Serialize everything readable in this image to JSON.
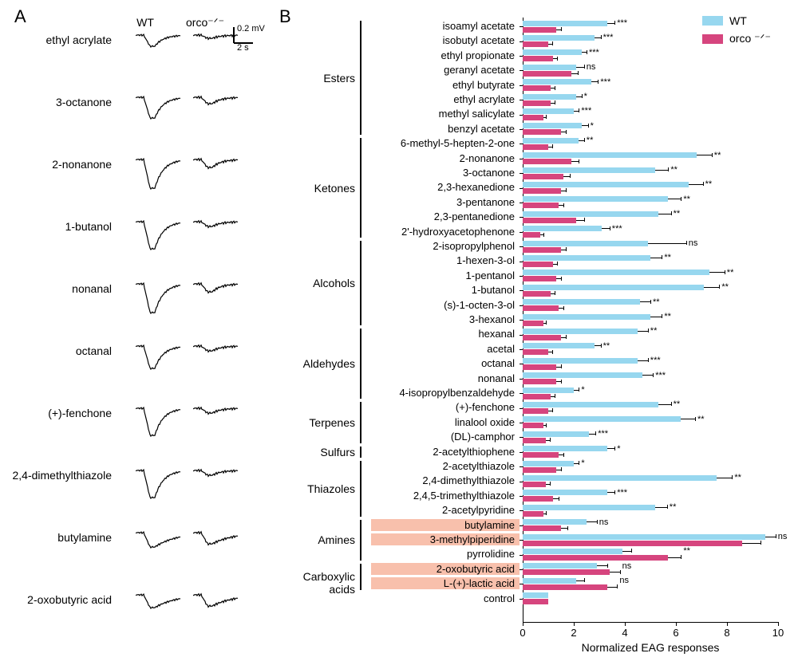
{
  "panel_labels": {
    "A": "A",
    "B": "B"
  },
  "panelA": {
    "col_headers": {
      "wt": "WT",
      "ko": "orco⁻ᐟ⁻"
    },
    "scalebar": {
      "y_label": "0.2 mV",
      "x_label": "2 s"
    },
    "traces": [
      {
        "label": "ethyl acrylate"
      },
      {
        "label": "3-octanone"
      },
      {
        "label": "2-nonanone"
      },
      {
        "label": "1-butanol"
      },
      {
        "label": "nonanal"
      },
      {
        "label": "octanal"
      },
      {
        "label": "(+)-fenchone"
      },
      {
        "label": "2,4-dimethylthiazole"
      },
      {
        "label": "butylamine"
      },
      {
        "label": "2-oxobutyric acid"
      }
    ],
    "trace_style": {
      "line_color": "#000000",
      "line_width": 1.2
    }
  },
  "panelB": {
    "colors": {
      "wt": "#97d7ef",
      "ko": "#d6457e",
      "highlight": "#f8c0ac",
      "axis": "#000000",
      "bg": "#ffffff"
    },
    "legend": {
      "wt": "WT",
      "ko": "orco ⁻ᐟ⁻"
    },
    "x_axis": {
      "title": "Normalized EAG responses",
      "min": 0,
      "max": 10,
      "tick_step": 2,
      "ticks": [
        0,
        2,
        4,
        6,
        8,
        10
      ]
    },
    "groups": [
      {
        "name": "Esters",
        "start": 0,
        "end": 7
      },
      {
        "name": "Ketones",
        "start": 8,
        "end": 14
      },
      {
        "name": "Alcohols",
        "start": 15,
        "end": 20
      },
      {
        "name": "Aldehydes",
        "start": 21,
        "end": 25
      },
      {
        "name": "Terpenes",
        "start": 26,
        "end": 28
      },
      {
        "name": "Sulfurs",
        "start": 29,
        "end": 29
      },
      {
        "name": "Thiazoles",
        "start": 30,
        "end": 33
      },
      {
        "name": "Amines",
        "start": 34,
        "end": 36
      },
      {
        "name": "Carboxylic acids",
        "start": 37,
        "end": 38
      }
    ],
    "rows": [
      {
        "label": "isoamyl acetate",
        "wt": 3.3,
        "wt_err": 0.3,
        "ko": 1.3,
        "ko_err": 0.2,
        "sig": "***"
      },
      {
        "label": "isobutyl acetate",
        "wt": 2.8,
        "wt_err": 0.25,
        "ko": 1.0,
        "ko_err": 0.15,
        "sig": "***"
      },
      {
        "label": "ethyl propionate",
        "wt": 2.3,
        "wt_err": 0.2,
        "ko": 1.2,
        "ko_err": 0.15,
        "sig": "***"
      },
      {
        "label": "geranyl acetate",
        "wt": 2.1,
        "wt_err": 0.3,
        "ko": 1.9,
        "ko_err": 0.25,
        "sig": "ns"
      },
      {
        "label": "ethyl butyrate",
        "wt": 2.7,
        "wt_err": 0.25,
        "ko": 1.1,
        "ko_err": 0.15,
        "sig": "***"
      },
      {
        "label": "ethyl acrylate",
        "wt": 2.1,
        "wt_err": 0.2,
        "ko": 1.1,
        "ko_err": 0.15,
        "sig": "*"
      },
      {
        "label": "methyl salicylate",
        "wt": 2.0,
        "wt_err": 0.2,
        "ko": 0.8,
        "ko_err": 0.1,
        "sig": "***"
      },
      {
        "label": "benzyl acetate",
        "wt": 2.3,
        "wt_err": 0.25,
        "ko": 1.5,
        "ko_err": 0.2,
        "sig": "*"
      },
      {
        "label": "6-methyl-5-hepten-2-one",
        "wt": 2.2,
        "wt_err": 0.2,
        "ko": 1.0,
        "ko_err": 0.15,
        "sig": "**"
      },
      {
        "label": "2-nonanone",
        "wt": 6.8,
        "wt_err": 0.6,
        "ko": 1.9,
        "ko_err": 0.3,
        "sig": "**"
      },
      {
        "label": "3-octanone",
        "wt": 5.2,
        "wt_err": 0.5,
        "ko": 1.6,
        "ko_err": 0.25,
        "sig": "**"
      },
      {
        "label": "2,3-hexanedione",
        "wt": 6.5,
        "wt_err": 0.55,
        "ko": 1.5,
        "ko_err": 0.2,
        "sig": "**"
      },
      {
        "label": "3-pentanone",
        "wt": 5.7,
        "wt_err": 0.5,
        "ko": 1.4,
        "ko_err": 0.2,
        "sig": "**"
      },
      {
        "label": "2,3-pentanedione",
        "wt": 5.3,
        "wt_err": 0.5,
        "ko": 2.1,
        "ko_err": 0.3,
        "sig": "**"
      },
      {
        "label": "2'-hydroxyacetophenone",
        "wt": 3.1,
        "wt_err": 0.3,
        "ko": 0.7,
        "ko_err": 0.1,
        "sig": "***"
      },
      {
        "label": "2-isopropylphenol",
        "wt": 4.9,
        "wt_err": 1.5,
        "ko": 1.5,
        "ko_err": 0.2,
        "sig": "ns"
      },
      {
        "label": "1-hexen-3-ol",
        "wt": 5.0,
        "wt_err": 0.45,
        "ko": 1.2,
        "ko_err": 0.15,
        "sig": "**"
      },
      {
        "label": "1-pentanol",
        "wt": 7.3,
        "wt_err": 0.6,
        "ko": 1.3,
        "ko_err": 0.2,
        "sig": "**"
      },
      {
        "label": "1-butanol",
        "wt": 7.1,
        "wt_err": 0.6,
        "ko": 1.1,
        "ko_err": 0.15,
        "sig": "**"
      },
      {
        "label": "(s)-1-octen-3-ol",
        "wt": 4.6,
        "wt_err": 0.4,
        "ko": 1.4,
        "ko_err": 0.2,
        "sig": "**"
      },
      {
        "label": "3-hexanol",
        "wt": 5.0,
        "wt_err": 0.45,
        "ko": 0.8,
        "ko_err": 0.1,
        "sig": "**"
      },
      {
        "label": "hexanal",
        "wt": 4.5,
        "wt_err": 0.4,
        "ko": 1.5,
        "ko_err": 0.2,
        "sig": "**"
      },
      {
        "label": "acetal",
        "wt": 2.8,
        "wt_err": 0.25,
        "ko": 1.0,
        "ko_err": 0.15,
        "sig": "**"
      },
      {
        "label": "octanal",
        "wt": 4.5,
        "wt_err": 0.4,
        "ko": 1.3,
        "ko_err": 0.2,
        "sig": "***"
      },
      {
        "label": "nonanal",
        "wt": 4.7,
        "wt_err": 0.4,
        "ko": 1.3,
        "ko_err": 0.2,
        "sig": "***"
      },
      {
        "label": "4-isopropylbenzaldehyde",
        "wt": 2.0,
        "wt_err": 0.2,
        "ko": 1.1,
        "ko_err": 0.15,
        "sig": "*"
      },
      {
        "label": "(+)-fenchone",
        "wt": 5.3,
        "wt_err": 0.5,
        "ko": 1.0,
        "ko_err": 0.15,
        "sig": "**"
      },
      {
        "label": "linalool oxide",
        "wt": 6.2,
        "wt_err": 0.55,
        "ko": 0.8,
        "ko_err": 0.1,
        "sig": "**"
      },
      {
        "label": "(DL)-camphor",
        "wt": 2.6,
        "wt_err": 0.25,
        "ko": 0.9,
        "ko_err": 0.15,
        "sig": "***"
      },
      {
        "label": "2-acetylthiophene",
        "wt": 3.3,
        "wt_err": 0.3,
        "ko": 1.4,
        "ko_err": 0.2,
        "sig": "*"
      },
      {
        "label": "2-acetylthiazole",
        "wt": 2.0,
        "wt_err": 0.2,
        "ko": 1.3,
        "ko_err": 0.2,
        "sig": "*"
      },
      {
        "label": "2,4-dimethylthiazole",
        "wt": 7.6,
        "wt_err": 0.6,
        "ko": 0.9,
        "ko_err": 0.15,
        "sig": "**"
      },
      {
        "label": "2,4,5-trimethylthiazole",
        "wt": 3.3,
        "wt_err": 0.3,
        "ko": 1.2,
        "ko_err": 0.2,
        "sig": "***"
      },
      {
        "label": "2-acetylpyridine",
        "wt": 5.2,
        "wt_err": 0.45,
        "ko": 0.8,
        "ko_err": 0.1,
        "sig": "**"
      },
      {
        "label": "butylamine",
        "wt": 2.5,
        "wt_err": 0.4,
        "ko": 1.5,
        "ko_err": 0.25,
        "sig": "ns",
        "highlight": true
      },
      {
        "label": "3-methylpiperidine",
        "wt": 9.5,
        "wt_err": 0.4,
        "ko": 8.6,
        "ko_err": 0.7,
        "sig": "ns",
        "highlight": true
      },
      {
        "label": "pyrrolidine",
        "wt": 3.9,
        "wt_err": 0.35,
        "ko": 5.7,
        "ko_err": 0.5,
        "sig": "**"
      },
      {
        "label": "2-oxobutyric acid",
        "wt": 2.9,
        "wt_err": 0.4,
        "ko": 3.4,
        "ko_err": 0.4,
        "sig": "ns",
        "highlight": true
      },
      {
        "label": "L-(+)-lactic acid",
        "wt": 2.1,
        "wt_err": 0.3,
        "ko": 3.3,
        "ko_err": 0.4,
        "sig": "ns",
        "highlight": true
      },
      {
        "label": "control",
        "wt": 1.0,
        "wt_err": 0.0,
        "ko": 1.0,
        "ko_err": 0.0,
        "sig": ""
      }
    ],
    "font_sizes": {
      "row_label": 13,
      "group_label": 14,
      "axis_title": 14,
      "tick": 13,
      "sig": 11
    }
  }
}
